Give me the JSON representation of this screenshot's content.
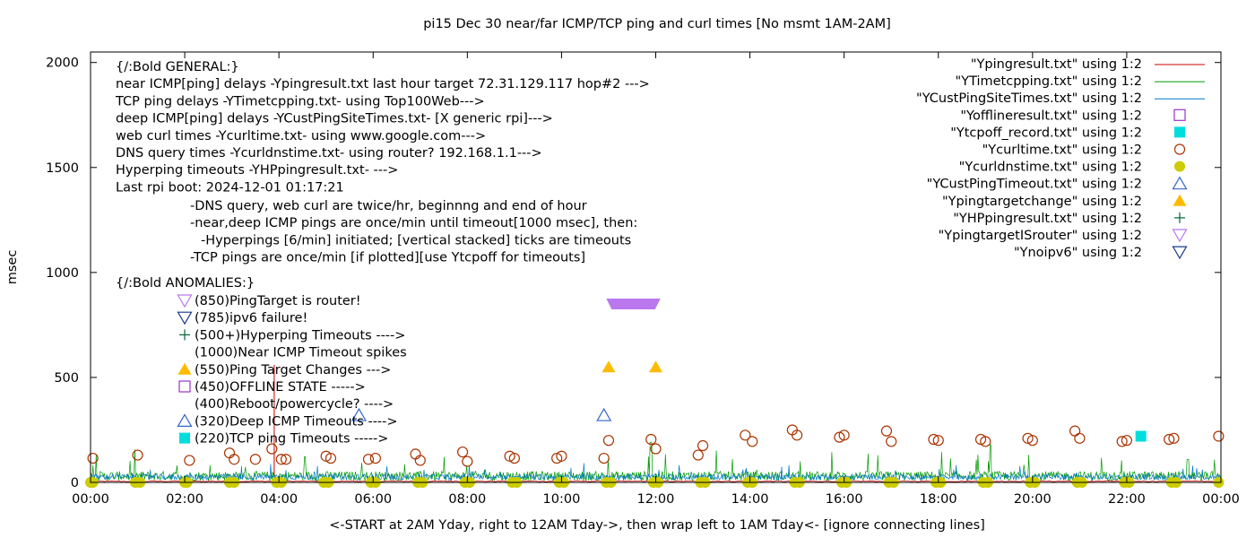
{
  "chart_data": {
    "type": "line",
    "title": "pi15 Dec 30  near/far ICMP/TCP ping and curl times [No msmt 1AM-2AM]",
    "xlabel": "<-START at 2AM Yday, right to 12AM Tday->, then wrap left to 1AM Tday<- [ignore connecting lines]",
    "ylabel": "msec",
    "xlim": [
      0,
      24
    ],
    "ylim": [
      0,
      2050
    ],
    "grid": false,
    "legend_position": "top-right",
    "x_ticks": [
      "00:00",
      "02:00",
      "04:00",
      "06:00",
      "08:00",
      "10:00",
      "12:00",
      "14:00",
      "16:00",
      "18:00",
      "20:00",
      "22:00",
      "00:00"
    ],
    "y_ticks": [
      0,
      500,
      1000,
      1500,
      2000
    ],
    "legend": [
      {
        "label": "\"Ypingresult.txt\" using 1:2",
        "kind": "line",
        "color": "#cc0000",
        "symbol": ""
      },
      {
        "label": "\"YTimetcpping.txt\" using 1:2",
        "kind": "line",
        "color": "#009900",
        "symbol": ""
      },
      {
        "label": "\"YCustPingSiteTimes.txt\" using 1:2",
        "kind": "line",
        "color": "#0077cc",
        "symbol": ""
      },
      {
        "label": "\"Yofflineresult.txt\" using 1:2",
        "kind": "marker",
        "color": "#9933cc",
        "symbol": "open-square"
      },
      {
        "label": "\"Ytcpoff_record.txt\" using 1:2",
        "kind": "marker",
        "color": "#00dddd",
        "symbol": "filled-square"
      },
      {
        "label": "\"Ycurltime.txt\" using 1:2",
        "kind": "marker",
        "color": "#aa3300",
        "symbol": "open-circle"
      },
      {
        "label": "\"Ycurldnstime.txt\" using 1:2",
        "kind": "marker",
        "color": "#cccc00",
        "symbol": "filled-circle"
      },
      {
        "label": "\"YCustPingTimeout.txt\" using 1:2",
        "kind": "marker",
        "color": "#3366cc",
        "symbol": "open-triangle-up"
      },
      {
        "label": "\"Ypingtargetchange\" using 1:2",
        "kind": "marker",
        "color": "#ffbb00",
        "symbol": "filled-triangle-up"
      },
      {
        "label": "\"YHPpingresult.txt\" using 1:2",
        "kind": "marker",
        "color": "#006633",
        "symbol": "plus"
      },
      {
        "label": "\"YpingtargetISrouter\" using 1:2",
        "kind": "marker",
        "color": "#bb77ee",
        "symbol": "open-triangle-down"
      },
      {
        "label": "\"Ynoipv6\" using 1:2",
        "kind": "marker",
        "color": "#1a3a8a",
        "symbol": "open-triangle-down"
      }
    ],
    "annotations": {
      "general": [
        "{/:Bold GENERAL:}",
        "near ICMP[ping] delays -Ypingresult.txt last hour target 72.31.129.117 hop#2 --->",
        "TCP ping delays -YTimetcpping.txt- using Top100Web--->",
        "deep ICMP[ping] delays -YCustPingSiteTimes.txt- [X generic rpi]--->",
        "web curl times -Ycurltime.txt- using www.google.com--->",
        "DNS query times -Ycurldnstime.txt- using router? 192.168.1.1--->",
        "Hyperping timeouts -YHPpingresult.txt- --->",
        "Last rpi boot: 2024-12-01 01:17:21"
      ],
      "notes": [
        "-DNS query, web curl are twice/hr, beginnng and end of hour",
        "-near,deep ICMP pings are once/min until timeout[1000 msec], then:",
        "-Hyperpings [6/min] initiated; [vertical stacked] ticks are timeouts",
        "-TCP pings are once/min [if plotted][use Ytcpoff for timeouts]"
      ],
      "anomalies_title": "{/:Bold ANOMALIES:}",
      "anomalies": [
        {
          "text": "(850)PingTarget is router!",
          "symbol": "open-triangle-down",
          "color": "#bb77ee"
        },
        {
          "text": "(785)ipv6 failure!",
          "symbol": "open-triangle-down",
          "color": "#1a3a8a"
        },
        {
          "text": "(500+)Hyperping Timeouts ---->",
          "symbol": "plus",
          "color": "#006633"
        },
        {
          "text": "(1000)Near ICMP Timeout spikes",
          "symbol": "",
          "color": ""
        },
        {
          "text": "(550)Ping Target Changes --->",
          "symbol": "filled-triangle-up",
          "color": "#ffbb00"
        },
        {
          "text": "(450)OFFLINE STATE ----->",
          "symbol": "open-square",
          "color": "#9933cc"
        },
        {
          "text": "(400)Reboot/powercycle? ---->",
          "symbol": "",
          "color": ""
        },
        {
          "text": "(320)Deep ICMP Timeouts ---->",
          "symbol": "open-triangle-up",
          "color": "#3366cc"
        },
        {
          "text": "(220)TCP ping Timeouts ----->",
          "symbol": "filled-square",
          "color": "#00dddd"
        }
      ]
    },
    "series": {
      "curl": [
        [
          0.05,
          115
        ],
        [
          1.0,
          130
        ],
        [
          2.1,
          105
        ],
        [
          2.95,
          140
        ],
        [
          3.05,
          110
        ],
        [
          3.5,
          110
        ],
        [
          3.85,
          160
        ],
        [
          4.05,
          110
        ],
        [
          4.15,
          110
        ],
        [
          5.0,
          125
        ],
        [
          5.1,
          115
        ],
        [
          5.9,
          110
        ],
        [
          6.05,
          115
        ],
        [
          6.9,
          135
        ],
        [
          7.0,
          105
        ],
        [
          7.9,
          145
        ],
        [
          8.0,
          100
        ],
        [
          8.9,
          125
        ],
        [
          9.0,
          115
        ],
        [
          9.9,
          115
        ],
        [
          10.0,
          125
        ],
        [
          10.9,
          115
        ],
        [
          11.0,
          200
        ],
        [
          11.9,
          205
        ],
        [
          12.0,
          160
        ],
        [
          12.9,
          130
        ],
        [
          13.0,
          175
        ],
        [
          13.9,
          225
        ],
        [
          14.05,
          195
        ],
        [
          14.9,
          250
        ],
        [
          15.0,
          225
        ],
        [
          15.9,
          215
        ],
        [
          16.0,
          225
        ],
        [
          16.9,
          245
        ],
        [
          17.0,
          195
        ],
        [
          17.9,
          205
        ],
        [
          18.0,
          200
        ],
        [
          18.9,
          205
        ],
        [
          19.0,
          195
        ],
        [
          19.9,
          210
        ],
        [
          20.0,
          200
        ],
        [
          20.9,
          245
        ],
        [
          21.0,
          210
        ],
        [
          21.9,
          195
        ],
        [
          22.0,
          200
        ],
        [
          22.9,
          205
        ],
        [
          23.0,
          210
        ],
        [
          23.95,
          220
        ]
      ],
      "dns": [
        0.0,
        0.05,
        0.95,
        1.05,
        2.0,
        2.05,
        2.95,
        3.05,
        3.95,
        4.05,
        4.95,
        5.05,
        5.95,
        6.05,
        6.95,
        7.05,
        7.95,
        8.05,
        8.95,
        9.05,
        9.95,
        10.05,
        10.95,
        11.05,
        11.95,
        12.05,
        12.95,
        13.05,
        13.95,
        14.05,
        14.95,
        15.05,
        15.95,
        16.05,
        16.95,
        17.05,
        17.95,
        18.05,
        18.95,
        19.05,
        19.95,
        20.05,
        20.95,
        21.05,
        21.95,
        22.05,
        22.95,
        23.05,
        23.95
      ],
      "tcp_timeouts": [
        [
          22.3,
          220
        ]
      ],
      "deep_icmp_timeouts": [
        [
          5.7,
          320
        ],
        [
          10.9,
          320
        ]
      ],
      "ping_target_changes": [
        [
          11.0,
          550
        ],
        [
          12.0,
          550
        ]
      ],
      "ping_target_is_router_span": [
        10.95,
        12.1
      ],
      "ping_target_is_router_value": 850,
      "near_icmp_spike": [
        3.9,
        560
      ]
    }
  }
}
